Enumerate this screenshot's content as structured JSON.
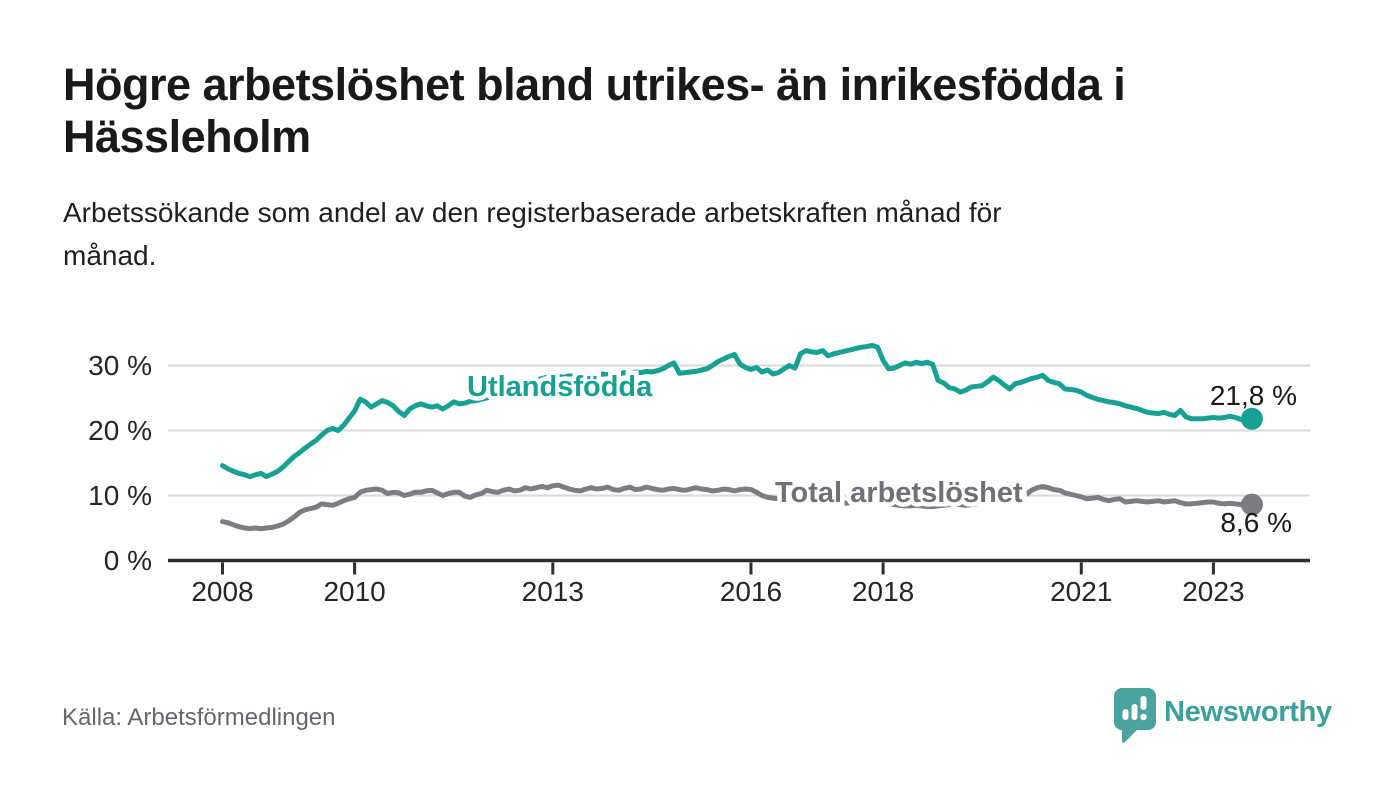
{
  "header": {
    "title_line1": "Högre arbetslöshet bland utrikes- än inrikesfödda i",
    "title_line2": "Hässleholm",
    "subtitle_line1": "Arbetssökande som andel av den registerbaserade arbetskraften månad för",
    "subtitle_line2": "månad."
  },
  "footer": {
    "source": "Källa: Arbetsförmedlingen",
    "brand": "Newsworthy",
    "brand_icon": "speech-bubble-bar-chart-exclamation"
  },
  "colors": {
    "series_utlandsfodda": "#17a195",
    "series_total_line": "#7c7c82",
    "series_total_label": "#707078",
    "gridline": "#dadada",
    "axis": "#2e2e2e",
    "tick_text": "#262626",
    "title_text": "#191919",
    "source_text": "#66666e",
    "brand_icon_teal": "#4aa39e",
    "brand_text_teal": "#3ba19b"
  },
  "chart_data": {
    "type": "line",
    "title": "Högre arbetslöshet bland utrikes- än inrikesfödda i Hässleholm",
    "subtitle": "Arbetssökande som andel av den registerbaserade arbetskraften månad för månad.",
    "xlabel": "",
    "ylabel": "",
    "x_unit": "month",
    "x_start": "2008-01",
    "x_end": "2023-08",
    "ylim": [
      0,
      35
    ],
    "grid": "horizontal",
    "legend_position": "inline-labels",
    "x_tick_years": [
      2008,
      2010,
      2013,
      2016,
      2018,
      2021,
      2023
    ],
    "y_ticks": [
      {
        "value": 0,
        "label": "0 %"
      },
      {
        "value": 10,
        "label": "10 %"
      },
      {
        "value": 20,
        "label": "20 %"
      },
      {
        "value": 30,
        "label": "30 %"
      }
    ],
    "series": [
      {
        "name": "Utlandsfödda",
        "color": "#17a195",
        "end_value": 21.8,
        "end_label": "21,8 %",
        "values": [
          14.6,
          14.1,
          13.7,
          13.4,
          13.2,
          12.9,
          13.2,
          13.4,
          12.9,
          13.3,
          13.7,
          14.4,
          15.2,
          16.0,
          16.6,
          17.3,
          17.9,
          18.5,
          19.3,
          20.0,
          20.3,
          20.0,
          20.8,
          21.9,
          23.0,
          24.8,
          24.4,
          23.6,
          24.1,
          24.6,
          24.3,
          23.8,
          22.9,
          22.3,
          23.3,
          23.8,
          24.1,
          23.8,
          23.6,
          23.8,
          23.3,
          23.8,
          24.4,
          24.1,
          24.2,
          24.5,
          24.6,
          24.8,
          25.0,
          25.3,
          25.6,
          25.9,
          26.2,
          26.5,
          26.8,
          27.1,
          27.4,
          27.7,
          28.0,
          28.2,
          28.1,
          28.3,
          28.2,
          28.4,
          28.3,
          28.5,
          28.4,
          28.6,
          28.5,
          28.7,
          28.6,
          28.8,
          28.7,
          28.9,
          28.8,
          29.0,
          28.9,
          29.1,
          29.0,
          29.2,
          29.5,
          30.0,
          30.4,
          28.8,
          28.9,
          29.0,
          29.1,
          29.3,
          29.5,
          30.0,
          30.6,
          31.0,
          31.4,
          31.7,
          30.2,
          29.7,
          29.4,
          29.7,
          29.0,
          29.3,
          28.7,
          28.9,
          29.5,
          30.0,
          29.6,
          31.8,
          32.3,
          32.1,
          32.0,
          32.3,
          31.5,
          31.8,
          32.0,
          32.2,
          32.4,
          32.6,
          32.8,
          32.9,
          33.1,
          32.8,
          30.8,
          29.5,
          29.6,
          30.0,
          30.4,
          30.2,
          30.5,
          30.3,
          30.5,
          30.2,
          27.7,
          27.3,
          26.6,
          26.4,
          25.9,
          26.2,
          26.7,
          26.8,
          26.9,
          27.5,
          28.2,
          27.7,
          27.0,
          26.4,
          27.2,
          27.4,
          27.7,
          28.0,
          28.2,
          28.5,
          27.7,
          27.4,
          27.2,
          26.4,
          26.3,
          26.2,
          25.9,
          25.4,
          25.1,
          24.8,
          24.6,
          24.4,
          24.3,
          24.1,
          23.8,
          23.6,
          23.4,
          23.1,
          22.8,
          22.7,
          22.6,
          22.8,
          22.5,
          22.3,
          23.1,
          22.1,
          21.8,
          21.8,
          21.8,
          21.9,
          22.0,
          21.9,
          22.0,
          22.2,
          22.0,
          21.7,
          21.7,
          21.8
        ]
      },
      {
        "name": "Total arbetslöshet",
        "color": "#7c7c82",
        "end_value": 8.6,
        "end_label": "8,6 %",
        "values": [
          6.0,
          5.8,
          5.5,
          5.2,
          5.0,
          4.9,
          5.0,
          4.9,
          5.0,
          5.1,
          5.3,
          5.6,
          6.1,
          6.7,
          7.4,
          7.8,
          8.0,
          8.2,
          8.7,
          8.6,
          8.5,
          8.8,
          9.2,
          9.5,
          9.7,
          10.5,
          10.8,
          10.9,
          11.0,
          10.8,
          10.3,
          10.5,
          10.4,
          10.0,
          10.2,
          10.5,
          10.5,
          10.7,
          10.8,
          10.4,
          10.0,
          10.3,
          10.5,
          10.5,
          9.9,
          9.7,
          10.1,
          10.3,
          10.8,
          10.6,
          10.5,
          10.8,
          11.0,
          10.7,
          10.8,
          11.2,
          11.0,
          11.2,
          11.4,
          11.2,
          11.5,
          11.6,
          11.3,
          11.0,
          10.8,
          10.7,
          11.0,
          11.2,
          11.0,
          11.1,
          11.3,
          10.9,
          10.8,
          11.1,
          11.3,
          10.9,
          11.0,
          11.3,
          11.1,
          10.9,
          10.8,
          11.0,
          11.1,
          10.9,
          10.8,
          11.0,
          11.2,
          11.0,
          10.9,
          10.7,
          10.8,
          11.0,
          10.9,
          10.7,
          10.9,
          11.0,
          10.9,
          10.5,
          10.0,
          9.7,
          9.6,
          9.5,
          9.6,
          9.5,
          9.4,
          9.3,
          9.3,
          9.2,
          9.2,
          9.3,
          9.1,
          9.0,
          8.9,
          8.8,
          8.9,
          9.0,
          8.8,
          8.7,
          8.7,
          8.8,
          8.8,
          8.7,
          8.6,
          8.5,
          8.4,
          8.4,
          8.5,
          8.4,
          8.3,
          8.3,
          8.4,
          8.5,
          8.6,
          8.7,
          8.6,
          8.5,
          8.6,
          8.7,
          8.9,
          8.8,
          8.9,
          9.0,
          9.1,
          9.2,
          9.4,
          9.6,
          10.2,
          10.8,
          11.2,
          11.4,
          11.2,
          10.9,
          10.8,
          10.4,
          10.2,
          10.0,
          9.8,
          9.5,
          9.6,
          9.7,
          9.4,
          9.2,
          9.4,
          9.5,
          9.0,
          9.1,
          9.2,
          9.1,
          9.0,
          9.1,
          9.2,
          9.0,
          9.1,
          9.2,
          8.9,
          8.7,
          8.7,
          8.8,
          8.9,
          9.0,
          9.0,
          8.8,
          8.7,
          8.8,
          8.7,
          8.6,
          8.6,
          8.6
        ]
      }
    ]
  }
}
